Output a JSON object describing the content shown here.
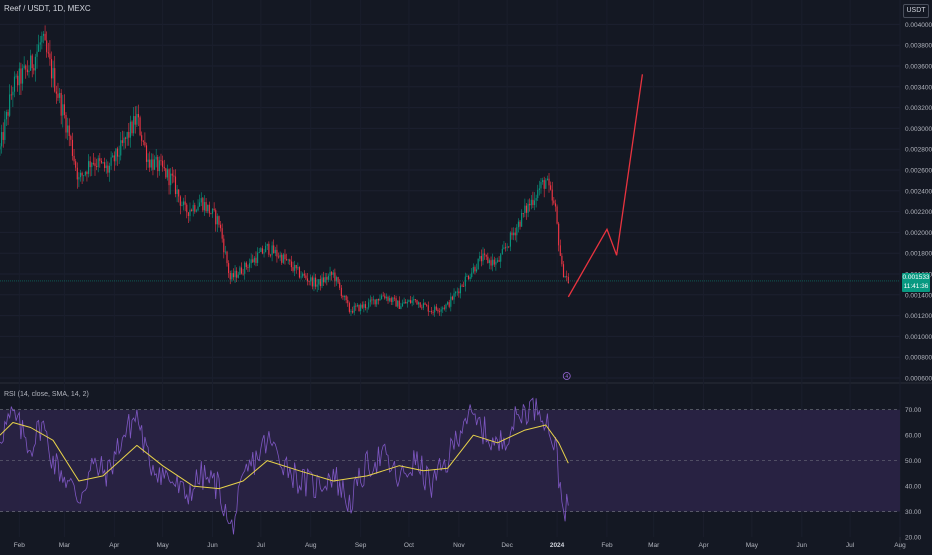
{
  "header": {
    "symbol_title": "Reef / USDT, 1D, MEXC",
    "currency": "USDT",
    "last_price": "0.001533",
    "countdown": "11:41:36"
  },
  "rsi_header": {
    "title": "RSI (14, close, SMA, 14, 2)"
  },
  "colors": {
    "background": "#141823",
    "up": "#089981",
    "down": "#f23645",
    "projection": "#e8333f",
    "rsi_line": "#7e57c2",
    "rsi_ma": "#e8d34a",
    "rsi_band": "#2a2446",
    "last_price_line": "#089981"
  },
  "chart_data": [
    {
      "type": "candlestick",
      "series_name": "Reef / USDT",
      "x_range": [
        "2023-01-20",
        "2024-08-01"
      ],
      "ylim": [
        0.0006,
        0.0041
      ],
      "y_ticks": [
        "0.004000",
        "0.003800",
        "0.003600",
        "0.003400",
        "0.003200",
        "0.003000",
        "0.002800",
        "0.002600",
        "0.002400",
        "0.002200",
        "0.002000",
        "0.001800",
        "0.001600",
        "0.001400",
        "0.001200",
        "0.001000",
        "0.000800",
        "0.000600"
      ],
      "x_tick_labels": [
        "Feb",
        "Mar",
        "Apr",
        "May",
        "Jun",
        "Jul",
        "Aug",
        "Sep",
        "Oct",
        "Nov",
        "Dec",
        "2024",
        "Feb",
        "Mar",
        "Apr",
        "May",
        "Jun",
        "Jul",
        "Aug"
      ],
      "x_tick_dates": [
        "2023-02-01",
        "2023-03-01",
        "2023-04-01",
        "2023-05-01",
        "2023-06-01",
        "2023-07-01",
        "2023-08-01",
        "2023-09-01",
        "2023-10-01",
        "2023-11-01",
        "2023-12-01",
        "2024-01-01",
        "2024-02-01",
        "2024-03-01",
        "2024-04-01",
        "2024-05-01",
        "2024-06-01",
        "2024-07-01",
        "2024-08-01"
      ],
      "close_path": [
        [
          "2023-01-20",
          0.0028
        ],
        [
          "2023-01-28",
          0.0034
        ],
        [
          "2023-02-08",
          0.0036
        ],
        [
          "2023-02-15",
          0.00385
        ],
        [
          "2023-02-22",
          0.0035
        ],
        [
          "2023-03-03",
          0.003
        ],
        [
          "2023-03-10",
          0.0025
        ],
        [
          "2023-03-18",
          0.0027
        ],
        [
          "2023-03-28",
          0.0026
        ],
        [
          "2023-04-05",
          0.0028
        ],
        [
          "2023-04-15",
          0.0031
        ],
        [
          "2023-04-22",
          0.0027
        ],
        [
          "2023-05-01",
          0.0026
        ],
        [
          "2023-05-07",
          0.0025
        ],
        [
          "2023-05-15",
          0.0022
        ],
        [
          "2023-05-25",
          0.0023
        ],
        [
          "2023-06-05",
          0.0021
        ],
        [
          "2023-06-12",
          0.00155
        ],
        [
          "2023-06-22",
          0.00168
        ],
        [
          "2023-07-05",
          0.00185
        ],
        [
          "2023-07-15",
          0.00175
        ],
        [
          "2023-07-25",
          0.0016
        ],
        [
          "2023-08-05",
          0.0015
        ],
        [
          "2023-08-15",
          0.0016
        ],
        [
          "2023-08-25",
          0.00125
        ],
        [
          "2023-09-05",
          0.0013
        ],
        [
          "2023-09-15",
          0.0014
        ],
        [
          "2023-09-25",
          0.0013
        ],
        [
          "2023-10-05",
          0.00135
        ],
        [
          "2023-10-15",
          0.00125
        ],
        [
          "2023-10-25",
          0.0013
        ],
        [
          "2023-11-05",
          0.00155
        ],
        [
          "2023-11-15",
          0.00175
        ],
        [
          "2023-11-25",
          0.0017
        ],
        [
          "2023-12-05",
          0.002
        ],
        [
          "2023-12-12",
          0.0022
        ],
        [
          "2023-12-20",
          0.0024
        ],
        [
          "2023-12-25",
          0.0025
        ],
        [
          "2023-12-31",
          0.0022
        ],
        [
          "2024-01-04",
          0.00165
        ],
        [
          "2024-01-08",
          0.001533
        ]
      ],
      "projection": [
        [
          "2024-01-08",
          0.00138
        ],
        [
          "2024-02-01",
          0.00203
        ],
        [
          "2024-02-07",
          0.00178
        ],
        [
          "2024-02-23",
          0.00352
        ]
      ],
      "last_price": 0.001533,
      "event_marker": {
        "date": "2024-01-07",
        "label": "4"
      }
    },
    {
      "type": "line",
      "title": "RSI (14, close, SMA, 14, 2)",
      "ylim": [
        20,
        75
      ],
      "y_ticks": [
        "70.00",
        "60.00",
        "50.00",
        "40.00",
        "30.00",
        "20.00"
      ],
      "bands": {
        "upper": 70,
        "middle": 50,
        "lower": 30
      },
      "series": [
        {
          "name": "RSI",
          "points": [
            [
              "2023-01-20",
              60
            ],
            [
              "2023-01-28",
              68
            ],
            [
              "2023-02-08",
              55
            ],
            [
              "2023-02-15",
              65
            ],
            [
              "2023-02-22",
              50
            ],
            [
              "2023-03-03",
              42
            ],
            [
              "2023-03-10",
              35
            ],
            [
              "2023-03-18",
              48
            ],
            [
              "2023-03-28",
              45
            ],
            [
              "2023-04-05",
              58
            ],
            [
              "2023-04-15",
              68
            ],
            [
              "2023-04-22",
              50
            ],
            [
              "2023-05-01",
              45
            ],
            [
              "2023-05-07",
              42
            ],
            [
              "2023-05-15",
              36
            ],
            [
              "2023-05-25",
              44
            ],
            [
              "2023-06-05",
              40
            ],
            [
              "2023-06-12",
              22
            ],
            [
              "2023-06-22",
              45
            ],
            [
              "2023-07-05",
              58
            ],
            [
              "2023-07-15",
              50
            ],
            [
              "2023-07-25",
              42
            ],
            [
              "2023-08-05",
              40
            ],
            [
              "2023-08-15",
              45
            ],
            [
              "2023-08-25",
              33
            ],
            [
              "2023-09-05",
              48
            ],
            [
              "2023-09-15",
              52
            ],
            [
              "2023-09-25",
              42
            ],
            [
              "2023-10-05",
              50
            ],
            [
              "2023-10-15",
              40
            ],
            [
              "2023-10-25",
              50
            ],
            [
              "2023-11-05",
              68
            ],
            [
              "2023-11-15",
              63
            ],
            [
              "2023-11-25",
              55
            ],
            [
              "2023-12-05",
              65
            ],
            [
              "2023-12-12",
              70
            ],
            [
              "2023-12-20",
              72
            ],
            [
              "2023-12-25",
              67
            ],
            [
              "2023-12-31",
              55
            ],
            [
              "2024-01-04",
              34
            ],
            [
              "2024-01-08",
              30
            ]
          ]
        },
        {
          "name": "RSI-based MA",
          "points": [
            [
              "2023-01-20",
              60
            ],
            [
              "2023-01-28",
              65
            ],
            [
              "2023-02-08",
              63
            ],
            [
              "2023-02-22",
              58
            ],
            [
              "2023-03-10",
              42
            ],
            [
              "2023-03-25",
              44
            ],
            [
              "2023-04-15",
              56
            ],
            [
              "2023-05-01",
              48
            ],
            [
              "2023-05-20",
              40
            ],
            [
              "2023-06-05",
              39
            ],
            [
              "2023-06-20",
              42
            ],
            [
              "2023-07-05",
              50
            ],
            [
              "2023-07-25",
              46
            ],
            [
              "2023-08-15",
              42
            ],
            [
              "2023-09-05",
              44
            ],
            [
              "2023-09-25",
              48
            ],
            [
              "2023-10-10",
              46
            ],
            [
              "2023-10-25",
              47
            ],
            [
              "2023-11-10",
              60
            ],
            [
              "2023-11-25",
              57
            ],
            [
              "2023-12-12",
              62
            ],
            [
              "2023-12-25",
              64
            ],
            [
              "2024-01-02",
              57
            ],
            [
              "2024-01-08",
              49
            ]
          ]
        }
      ]
    }
  ]
}
